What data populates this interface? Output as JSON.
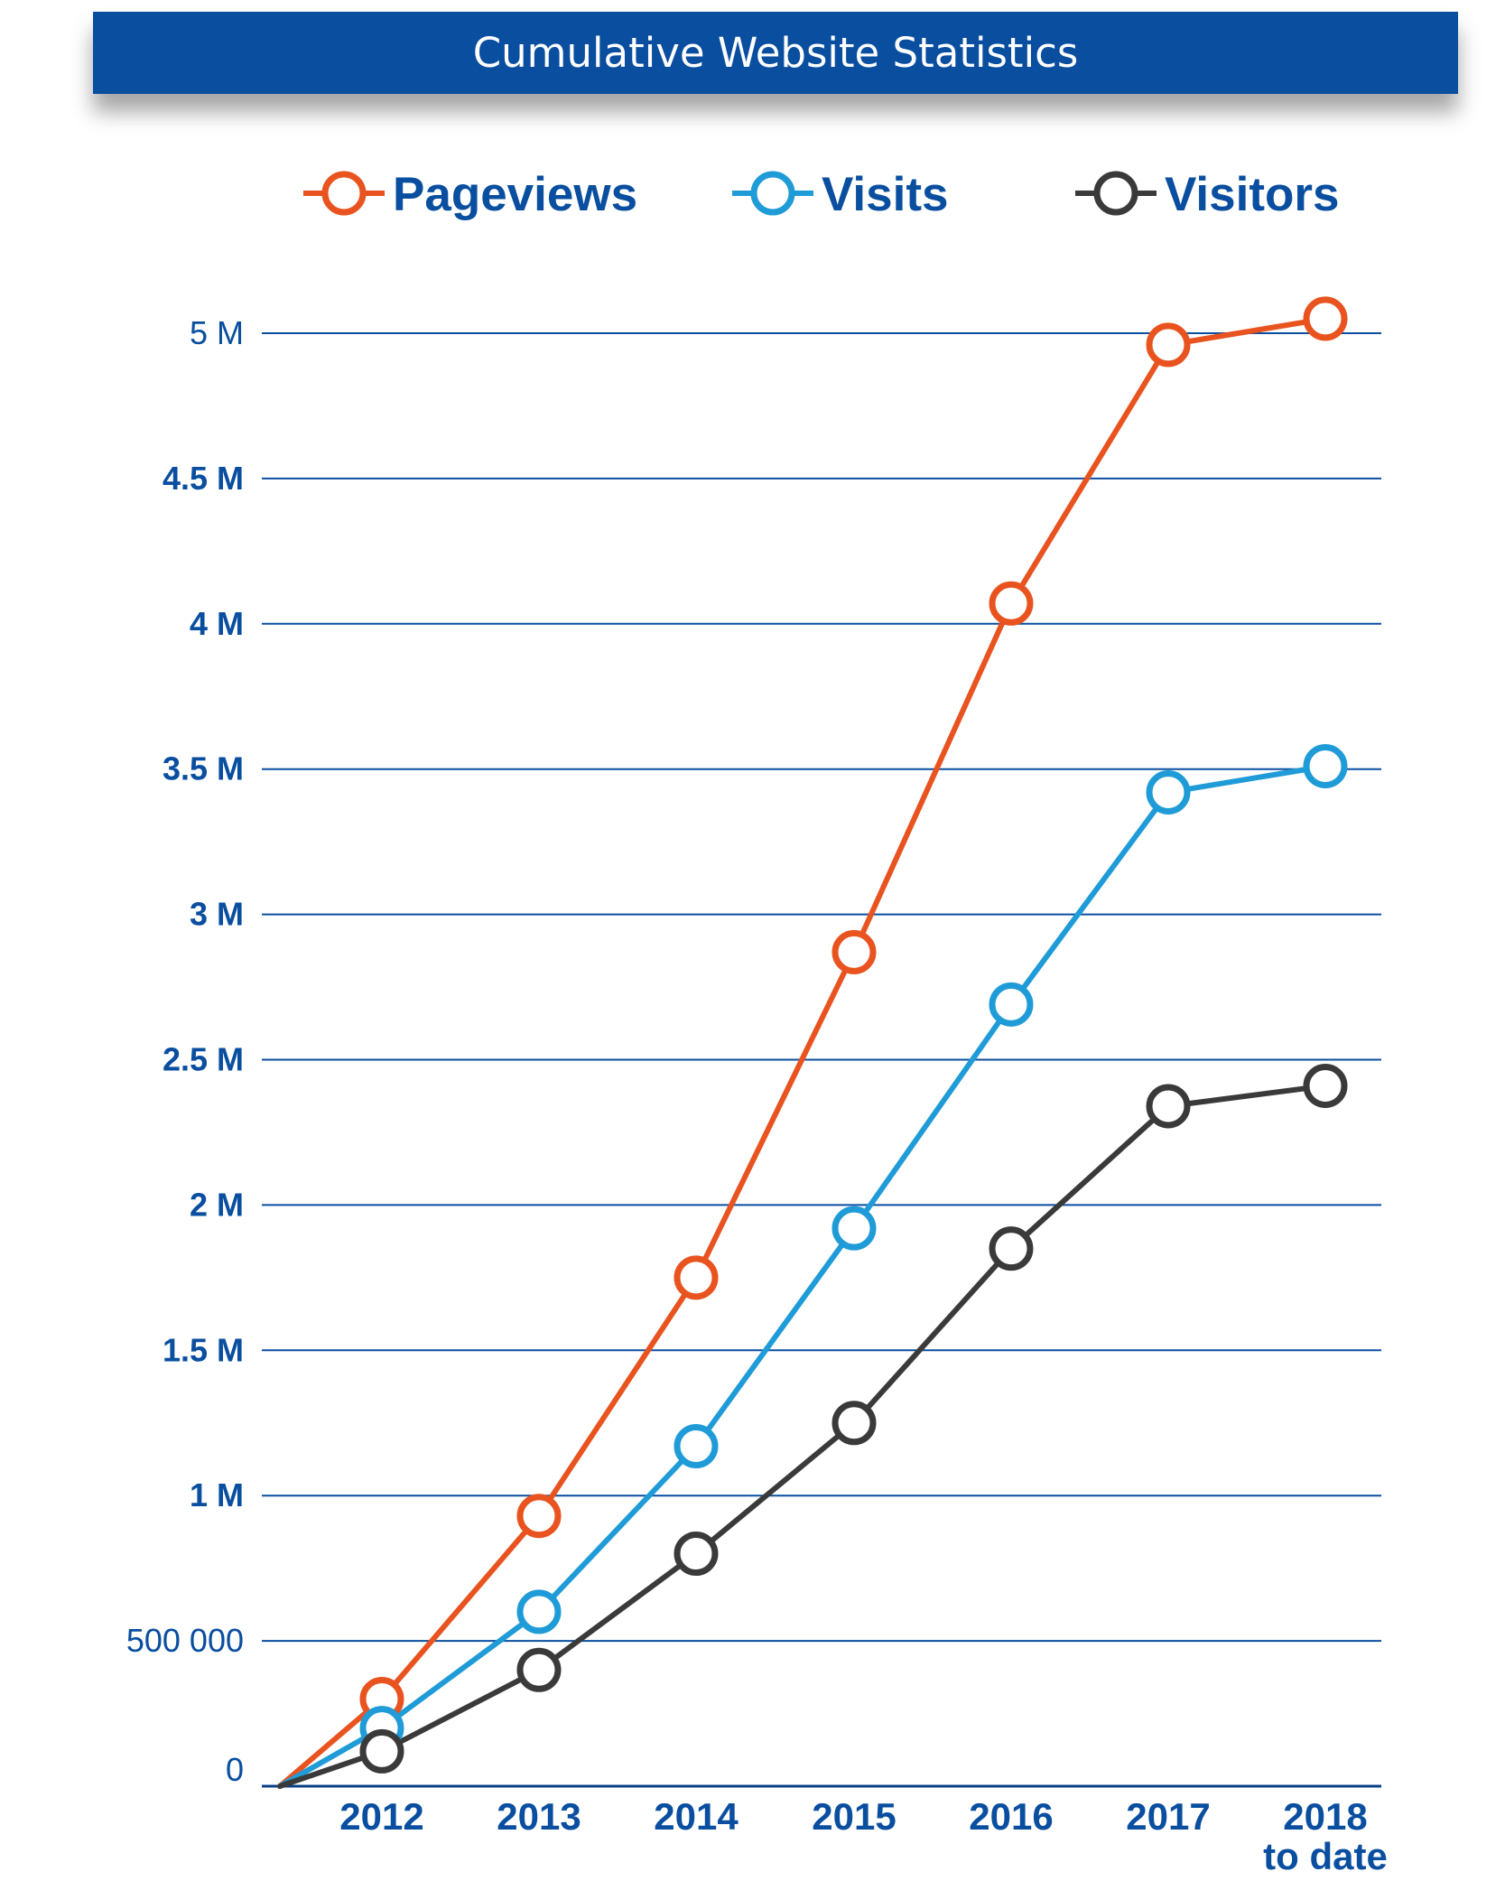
{
  "chart_data": {
    "type": "line",
    "title": "Cumulative Website Statistics",
    "categories": [
      "2012",
      "2013",
      "2014",
      "2015",
      "2016",
      "2017",
      "2018"
    ],
    "category_sublabels": [
      "",
      "",
      "",
      "",
      "",
      "",
      "to date"
    ],
    "y_tick_labels": [
      "0",
      "500 000",
      "1 M",
      "1.5 M",
      "2 M",
      "2.5 M",
      "3 M",
      "3.5 M",
      "4 M",
      "4.5 M",
      "5 M"
    ],
    "y_tick_values": [
      0,
      500000,
      1000000,
      1500000,
      2000000,
      2500000,
      3000000,
      3500000,
      4000000,
      4500000,
      5000000
    ],
    "ylim": [
      0,
      5000000
    ],
    "origin_point": true,
    "series": [
      {
        "name": "Pageviews",
        "color": "#e8531f",
        "values": [
          300000,
          930000,
          1750000,
          2870000,
          4070000,
          4960000,
          5050000
        ]
      },
      {
        "name": "Visits",
        "color": "#1f9bd7",
        "values": [
          200000,
          600000,
          1170000,
          1920000,
          2690000,
          3420000,
          3510000
        ]
      },
      {
        "name": "Visitors",
        "color": "#3a3a3a",
        "values": [
          120000,
          400000,
          800000,
          1250000,
          1850000,
          2340000,
          2410000
        ]
      }
    ],
    "legend_position": "top",
    "grid": true,
    "grid_color": "#0a4ea0",
    "label_color": "#0a4ea0"
  }
}
